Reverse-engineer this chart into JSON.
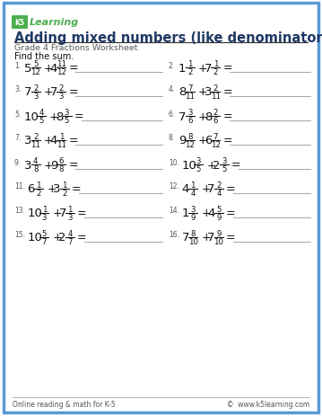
{
  "title": "Adding mixed numbers (like denominators)",
  "subtitle": "Grade 4 Fractions Worksheet",
  "instruction": "Find the sum.",
  "bg_color": "#ffffff",
  "border_color": "#5b9bd5",
  "title_color": "#1f3864",
  "subtitle_color": "#595959",
  "footer_left": "Online reading & math for K-5",
  "footer_right": "©  www.k5learning.com",
  "problems": [
    {
      "num": "1",
      "w1": "5",
      "n1": "5",
      "d1": "12",
      "w2": "4",
      "n2": "11",
      "d2": "12"
    },
    {
      "num": "2",
      "w1": "1",
      "n1": "1",
      "d1": "2",
      "w2": "7",
      "n2": "1",
      "d2": "2"
    },
    {
      "num": "3",
      "w1": "7",
      "n1": "2",
      "d1": "3",
      "w2": "7",
      "n2": "2",
      "d2": "3"
    },
    {
      "num": "4",
      "w1": "8",
      "n1": "7",
      "d1": "11",
      "w2": "3",
      "n2": "2",
      "d2": "11"
    },
    {
      "num": "5",
      "w1": "10",
      "n1": "4",
      "d1": "5",
      "w2": "8",
      "n2": "3",
      "d2": "5"
    },
    {
      "num": "6",
      "w1": "7",
      "n1": "3",
      "d1": "6",
      "w2": "8",
      "n2": "2",
      "d2": "6"
    },
    {
      "num": "7",
      "w1": "3",
      "n1": "2",
      "d1": "11",
      "w2": "4",
      "n2": "1",
      "d2": "11"
    },
    {
      "num": "8",
      "w1": "9",
      "n1": "8",
      "d1": "12",
      "w2": "6",
      "n2": "7",
      "d2": "12"
    },
    {
      "num": "9",
      "w1": "3",
      "n1": "4",
      "d1": "8",
      "w2": "9",
      "n2": "6",
      "d2": "8"
    },
    {
      "num": "10",
      "w1": "10",
      "n1": "3",
      "d1": "5",
      "w2": "2",
      "n2": "3",
      "d2": "5"
    },
    {
      "num": "11",
      "w1": "6",
      "n1": "1",
      "d1": "2",
      "w2": "3",
      "n2": "1",
      "d2": "2"
    },
    {
      "num": "12",
      "w1": "4",
      "n1": "1",
      "d1": "4",
      "w2": "7",
      "n2": "2",
      "d2": "4"
    },
    {
      "num": "13",
      "w1": "10",
      "n1": "1",
      "d1": "3",
      "w2": "7",
      "n2": "1",
      "d2": "3"
    },
    {
      "num": "14",
      "w1": "1",
      "n1": "3",
      "d1": "9",
      "w2": "4",
      "n2": "5",
      "d2": "9"
    },
    {
      "num": "15",
      "w1": "10",
      "n1": "5",
      "d1": "7",
      "w2": "2",
      "n2": "4",
      "d2": "7"
    },
    {
      "num": "16",
      "w1": "7",
      "n1": "8",
      "d1": "10",
      "w2": "7",
      "n2": "9",
      "d2": "10"
    }
  ]
}
